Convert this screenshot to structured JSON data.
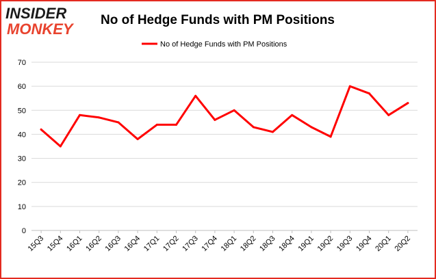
{
  "logo": {
    "line1": "INSIDER",
    "line2": "MONKEY"
  },
  "colors": {
    "series": "#ff0000",
    "logo_dark": "#1a1a1a",
    "logo_red": "#e8432e",
    "border": "#e32b20",
    "grid": "#d9d9d9"
  },
  "chart_data": {
    "type": "line",
    "title": "No of Hedge Funds with PM Positions",
    "xlabel": "",
    "ylabel": "",
    "ylim": [
      0,
      70
    ],
    "yticks": [
      0,
      10,
      20,
      30,
      40,
      50,
      60,
      70
    ],
    "grid": true,
    "legend_position": "top-center",
    "categories": [
      "15Q3",
      "15Q4",
      "16Q1",
      "16Q2",
      "16Q3",
      "16Q4",
      "17Q1",
      "17Q2",
      "17Q3",
      "17Q4",
      "18Q1",
      "18Q2",
      "18Q3",
      "18Q4",
      "19Q1",
      "19Q2",
      "19Q3",
      "19Q4",
      "20Q1",
      "20Q2"
    ],
    "series": [
      {
        "name": "No of Hedge Funds with PM Positions",
        "values": [
          42,
          35,
          48,
          47,
          45,
          38,
          44,
          44,
          56,
          46,
          50,
          43,
          41,
          48,
          43,
          39,
          60,
          57,
          48,
          53
        ]
      }
    ]
  }
}
